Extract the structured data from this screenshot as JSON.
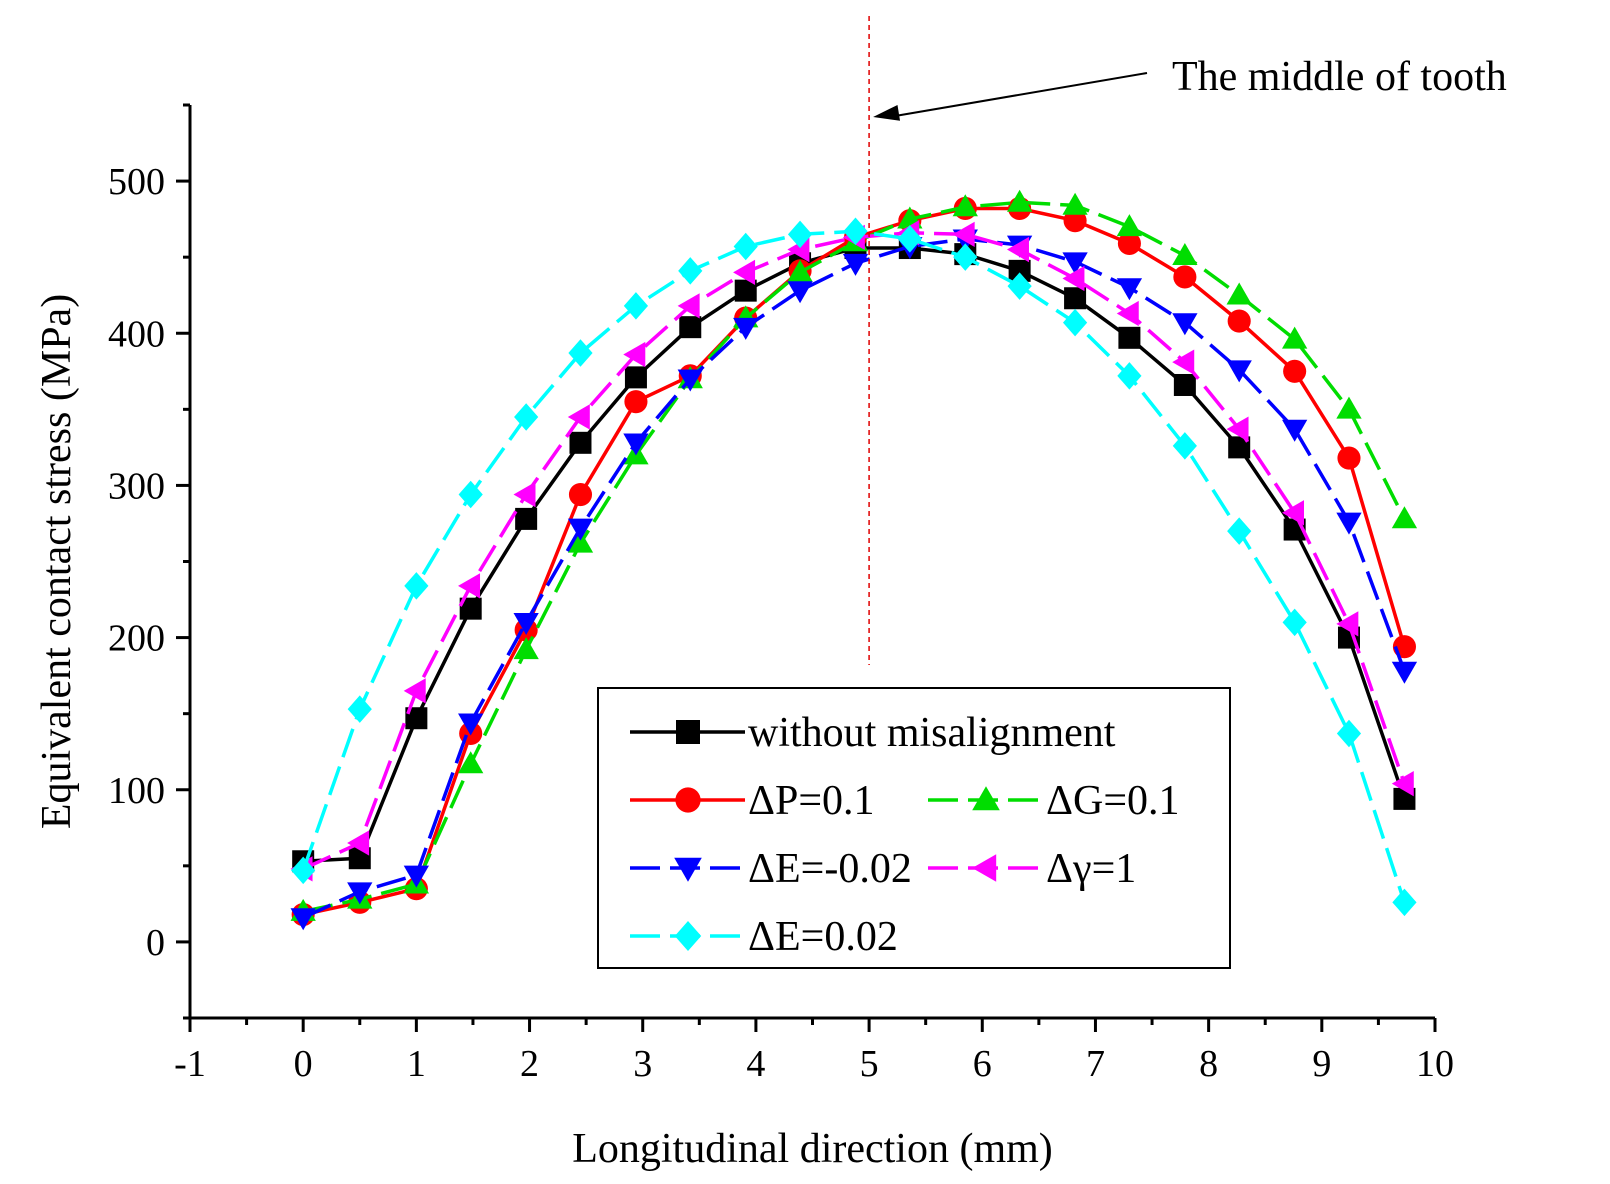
{
  "chart_data": {
    "type": "line",
    "title": "",
    "xlabel": "Longitudinal direction (mm)",
    "ylabel": "Equivalent contact stress (MPa)",
    "xlim": [
      -1,
      10
    ],
    "ylim": [
      -50,
      550
    ],
    "x_ticks": [
      -1,
      0,
      1,
      2,
      3,
      4,
      5,
      6,
      7,
      8,
      9,
      10
    ],
    "y_ticks": [
      0,
      100,
      200,
      300,
      400,
      500
    ],
    "x": [
      0,
      0.5,
      1,
      1.48,
      1.97,
      2.45,
      2.94,
      3.42,
      3.91,
      4.39,
      4.88,
      5.36,
      5.85,
      6.33,
      6.82,
      7.3,
      7.79,
      8.27,
      8.76,
      9.24,
      9.73
    ],
    "annotation": {
      "text": "The middle of tooth",
      "x": 5
    },
    "legend_position": "lower-center",
    "series": [
      {
        "name": "without misalignment",
        "color": "#000000",
        "marker": "square",
        "dash": "solid",
        "values": [
          53,
          55,
          147,
          219,
          278,
          328,
          371,
          404,
          428,
          446,
          456,
          456,
          452,
          441,
          423,
          397,
          366,
          325,
          271,
          200,
          94
        ]
      },
      {
        "name": "ΔP=0.1",
        "color": "#ff0000",
        "marker": "circle",
        "dash": "solid",
        "values": [
          18,
          26,
          35,
          137,
          205,
          294,
          355,
          372,
          410,
          441,
          463,
          474,
          482,
          482,
          474,
          459,
          437,
          408,
          375,
          318,
          194
        ]
      },
      {
        "name": "ΔG=0.1",
        "color": "#00dd00",
        "marker": "triangle-up",
        "dash": "dash",
        "values": [
          20,
          28,
          38,
          117,
          192,
          262,
          320,
          370,
          410,
          440,
          460,
          475,
          483,
          486,
          484,
          470,
          451,
          425,
          396,
          350,
          278
        ]
      },
      {
        "name": "ΔE=-0.02",
        "color": "#0000ff",
        "marker": "triangle-down",
        "dash": "dash",
        "values": [
          16,
          33,
          44,
          144,
          210,
          272,
          328,
          370,
          404,
          428,
          446,
          457,
          462,
          458,
          447,
          430,
          407,
          376,
          337,
          276,
          178
        ]
      },
      {
        "name": "Δγ=1",
        "color": "#ff00ff",
        "marker": "triangle-left",
        "dash": "dash",
        "values": [
          48,
          65,
          165,
          234,
          294,
          345,
          386,
          418,
          440,
          455,
          463,
          466,
          465,
          455,
          436,
          413,
          381,
          337,
          282,
          209,
          104
        ]
      },
      {
        "name": "ΔE=0.02",
        "color": "#00ffff",
        "marker": "diamond",
        "dash": "dash",
        "values": [
          47,
          153,
          234,
          294,
          345,
          387,
          418,
          441,
          457,
          465,
          467,
          462,
          450,
          431,
          407,
          372,
          326,
          270,
          210,
          137,
          26
        ]
      }
    ]
  }
}
